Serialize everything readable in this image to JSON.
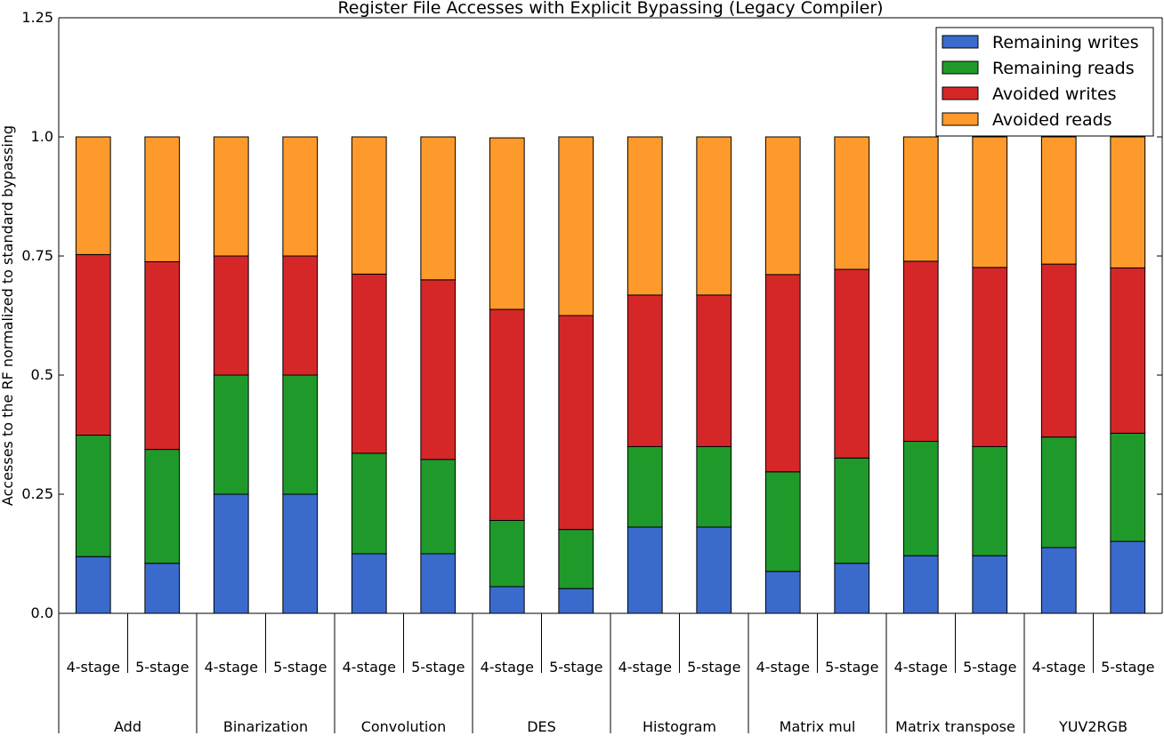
{
  "chart_data": {
    "type": "bar",
    "stacked": true,
    "title": "Register File Accesses with Explicit Bypassing (Legacy Compiler)",
    "ylabel": "Accesses to the RF normalized to standard bypassing",
    "xlabel": "",
    "ylim": [
      0,
      1.25
    ],
    "yticks": [
      0,
      0.25,
      0.5,
      0.75,
      1.0,
      1.25
    ],
    "ytick_labels": [
      "0.0",
      "0.25",
      "0.5",
      "0.75",
      "1.0",
      "1.25"
    ],
    "grid": false,
    "legend_position": "top-right",
    "groups": [
      "Add",
      "Binarization",
      "Convolution",
      "DES",
      "Histogram",
      "Matrix mul",
      "Matrix transpose",
      "YUV2RGB"
    ],
    "subcategories": [
      "4-stage",
      "5-stage"
    ],
    "categories": [
      "Add 4-stage",
      "Add 5-stage",
      "Binarization 4-stage",
      "Binarization 5-stage",
      "Convolution 4-stage",
      "Convolution 5-stage",
      "DES 4-stage",
      "DES 5-stage",
      "Histogram 4-stage",
      "Histogram 5-stage",
      "Matrix mul 4-stage",
      "Matrix mul 5-stage",
      "Matrix transpose 4-stage",
      "Matrix transpose 5-stage",
      "YUV2RGB 4-stage",
      "YUV2RGB 5-stage"
    ],
    "series": [
      {
        "name": "Remaining writes",
        "color": "#3a6bcc",
        "values": [
          0.119,
          0.105,
          0.25,
          0.25,
          0.125,
          0.125,
          0.056,
          0.052,
          0.181,
          0.181,
          0.088,
          0.105,
          0.121,
          0.121,
          0.138,
          0.151
        ]
      },
      {
        "name": "Remaining reads",
        "color": "#1f9a2a",
        "values": [
          0.255,
          0.239,
          0.25,
          0.25,
          0.211,
          0.198,
          0.139,
          0.124,
          0.169,
          0.169,
          0.209,
          0.221,
          0.24,
          0.229,
          0.232,
          0.227
        ]
      },
      {
        "name": "Avoided writes",
        "color": "#d62728",
        "values": [
          0.379,
          0.394,
          0.25,
          0.25,
          0.376,
          0.377,
          0.443,
          0.449,
          0.318,
          0.318,
          0.414,
          0.396,
          0.378,
          0.376,
          0.363,
          0.347
        ]
      },
      {
        "name": "Avoided reads",
        "color": "#fd9a2b",
        "values": [
          0.247,
          0.262,
          0.25,
          0.25,
          0.288,
          0.3,
          0.36,
          0.375,
          0.332,
          0.332,
          0.289,
          0.278,
          0.261,
          0.274,
          0.267,
          0.275
        ]
      }
    ]
  }
}
